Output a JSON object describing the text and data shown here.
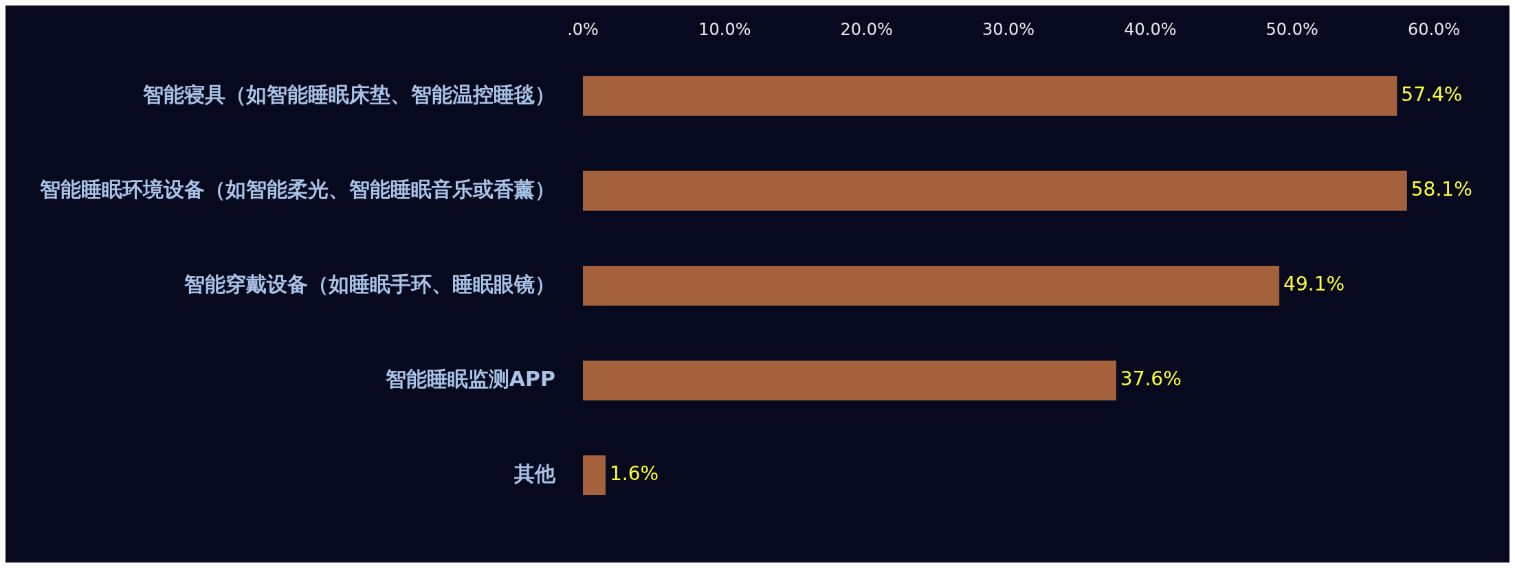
{
  "chart_data": {
    "type": "bar",
    "orientation": "horizontal",
    "categories": [
      "智能寝具（如智能睡眠床垫、智能温控睡毯）",
      "智能睡眠环境设备（如智能柔光、智能睡眠音乐或香薰）",
      "智能穿戴设备（如睡眠手环、睡眠眼镜）",
      "智能睡眠监测APP",
      "其他"
    ],
    "values": [
      57.4,
      58.1,
      49.1,
      37.6,
      1.6
    ],
    "value_labels": [
      "57.4%",
      "58.1%",
      "49.1%",
      "37.6%",
      "1.6%"
    ],
    "color": "#a5613b",
    "xlim": [
      0,
      60
    ],
    "xticks": [
      {
        "value": 0,
        "label": ".0%"
      },
      {
        "value": 10,
        "label": "10.0%"
      },
      {
        "value": 20,
        "label": "20.0%"
      },
      {
        "value": 30,
        "label": "30.0%"
      },
      {
        "value": 40,
        "label": "40.0%"
      },
      {
        "value": 50,
        "label": "50.0%"
      },
      {
        "value": 60,
        "label": "60.0%"
      }
    ],
    "grid": false,
    "legend": false
  }
}
